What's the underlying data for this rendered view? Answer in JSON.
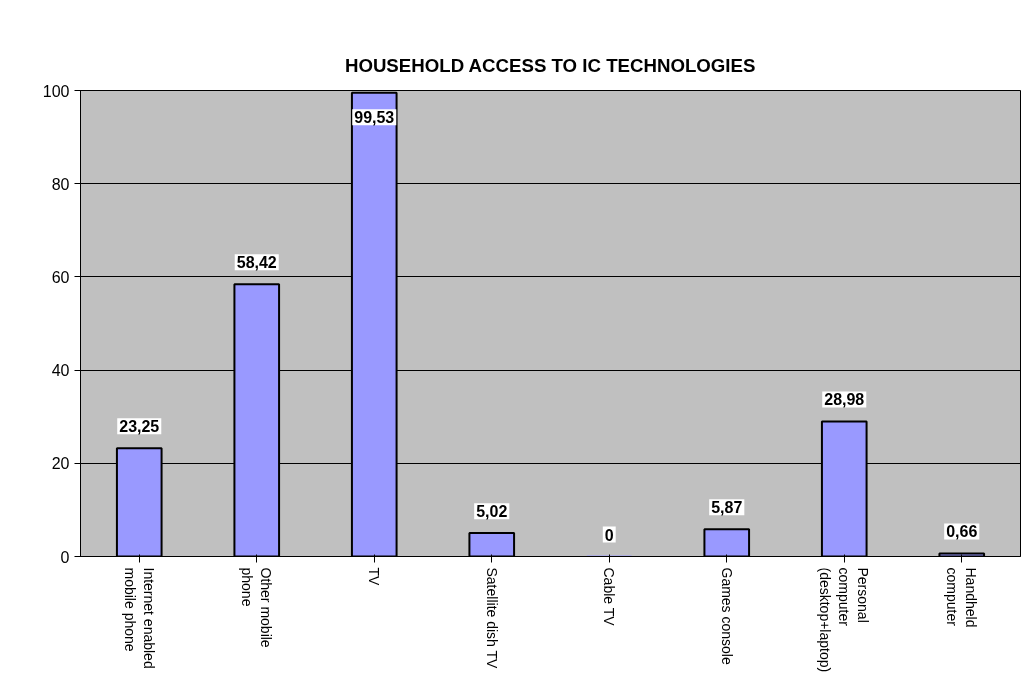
{
  "chart_data": {
    "type": "bar",
    "title": "HOUSEHOLD ACCESS TO IC TECHNOLOGIES",
    "categories": [
      "Internet enabled\nmobile phone",
      "Other mobile\nphone",
      "TV",
      "Satellite dish TV",
      "Cable TV",
      "Games console",
      "Personal\ncomputer\n(desktop+laptop)",
      "Handheld\ncomputer"
    ],
    "values": [
      23.25,
      58.42,
      99.53,
      5.02,
      0,
      5.87,
      28.98,
      0.66
    ],
    "value_labels": [
      "23,25",
      "58,42",
      "99,53",
      "5,02",
      "0",
      "5,87",
      "28,98",
      "0,66"
    ],
    "color": "#9999ff",
    "ylim": [
      0,
      100
    ],
    "yticks": [
      0,
      20,
      40,
      60,
      80,
      100
    ],
    "grid": "y"
  }
}
